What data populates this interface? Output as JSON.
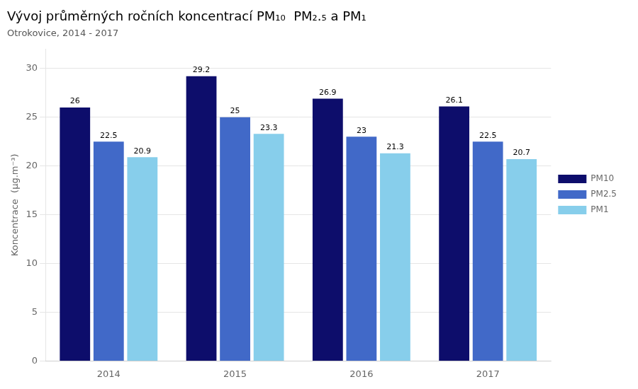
{
  "chart_data": {
    "type": "bar",
    "title": "Vývoj průměrných ročních koncentrací PM₁₀  PM₂.₅ a PM₁",
    "subtitle": "Otrokovice, 2014 - 2017",
    "y_label": "Koncentrace  (μg.m⁻³)",
    "categories": [
      "2014",
      "2015",
      "2016",
      "2017"
    ],
    "series": [
      {
        "name": "PM10",
        "color": "#0d0d6b",
        "values": [
          26.0,
          29.2,
          26.9,
          26.1
        ]
      },
      {
        "name": "PM2.5",
        "color": "#4169c8",
        "values": [
          22.5,
          25.0,
          23.0,
          22.5
        ]
      },
      {
        "name": "PM1",
        "color": "#87ceeb",
        "values": [
          20.9,
          23.3,
          21.3,
          20.7
        ]
      }
    ],
    "ylim": [
      0,
      32
    ],
    "yticks": [
      0,
      5,
      10,
      15,
      20,
      25,
      30
    ],
    "grid": true,
    "legend": "right",
    "data_labels": true
  }
}
